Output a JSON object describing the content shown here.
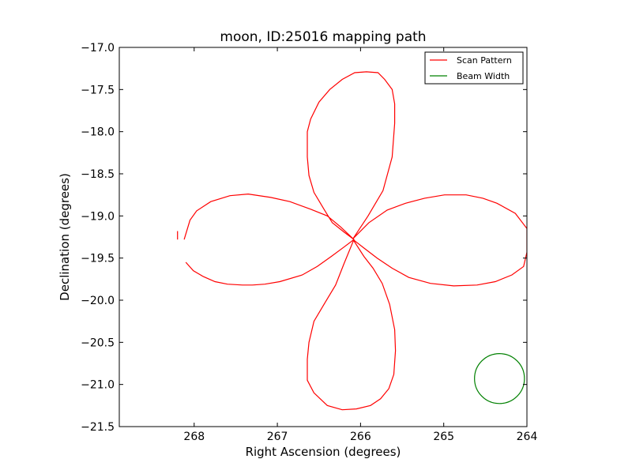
{
  "chart_data": {
    "type": "line",
    "title": "moon, ID:25016 mapping path",
    "xlabel": "Right Ascension (degrees)",
    "ylabel": "Declination (degrees)",
    "xlim": [
      268.9,
      264.0
    ],
    "ylim": [
      -21.5,
      -17.0
    ],
    "x_ticks": [
      268,
      267,
      266,
      265,
      264
    ],
    "x_tick_labels": [
      "268",
      "267",
      "266",
      "265",
      "264"
    ],
    "y_ticks": [
      -17.0,
      -17.5,
      -18.0,
      -18.5,
      -19.0,
      -19.5,
      -20.0,
      -20.5,
      -21.0,
      -21.5
    ],
    "y_tick_labels": [
      "−17.0",
      "−17.5",
      "−18.0",
      "−18.5",
      "−19.0",
      "−19.5",
      "−20.0",
      "−20.5",
      "−21.0",
      "−21.5"
    ],
    "grid": false,
    "legend_position": "top-right",
    "series": [
      {
        "name": "Scan Pattern",
        "color": "#ff0000",
        "x": [
          268.1,
          268.01,
          267.89,
          267.75,
          267.6,
          267.42,
          267.3,
          267.15,
          266.97,
          266.7,
          266.52,
          266.35,
          266.2,
          266.08,
          266.2,
          266.34,
          266.44,
          266.56,
          266.62,
          266.64,
          266.64,
          266.6,
          266.5,
          266.37,
          266.22,
          266.07,
          265.93,
          265.79,
          265.71,
          265.62,
          265.59,
          265.59,
          265.62,
          265.73,
          265.91,
          266.09,
          265.9,
          265.68,
          265.46,
          265.23,
          264.99,
          264.73,
          264.53,
          264.36,
          264.14,
          264.0,
          264.0,
          264.04,
          264.18,
          264.38,
          264.6,
          264.88,
          265.16,
          265.42,
          265.62,
          265.8,
          265.96,
          266.09,
          265.96,
          265.85,
          265.74,
          265.65,
          265.59,
          265.58,
          265.6,
          265.66,
          265.76,
          265.88,
          266.05,
          266.22,
          266.4,
          266.56,
          266.64,
          266.64,
          266.62,
          266.56,
          266.44,
          266.3,
          266.2,
          266.08,
          266.24,
          266.4,
          266.6,
          266.85,
          267.08,
          267.35,
          267.57,
          267.8,
          267.97,
          268.05,
          268.12
        ],
        "y": [
          -19.55,
          -19.65,
          -19.72,
          -19.78,
          -19.81,
          -19.82,
          -19.82,
          -19.81,
          -19.78,
          -19.7,
          -19.6,
          -19.48,
          -19.37,
          -19.28,
          -19.19,
          -19.08,
          -18.92,
          -18.72,
          -18.52,
          -18.3,
          -18.0,
          -17.85,
          -17.65,
          -17.5,
          -17.38,
          -17.3,
          -17.29,
          -17.3,
          -17.38,
          -17.5,
          -17.67,
          -17.9,
          -18.3,
          -18.7,
          -19.0,
          -19.27,
          -19.08,
          -18.93,
          -18.85,
          -18.79,
          -18.75,
          -18.75,
          -18.79,
          -18.85,
          -18.97,
          -19.15,
          -19.43,
          -19.6,
          -19.7,
          -19.78,
          -19.82,
          -19.83,
          -19.8,
          -19.73,
          -19.62,
          -19.5,
          -19.38,
          -19.28,
          -19.48,
          -19.62,
          -19.8,
          -20.05,
          -20.35,
          -20.6,
          -20.88,
          -21.05,
          -21.17,
          -21.25,
          -21.29,
          -21.3,
          -21.25,
          -21.1,
          -20.95,
          -20.7,
          -20.5,
          -20.25,
          -20.05,
          -19.82,
          -19.57,
          -19.28,
          -19.13,
          -19.0,
          -18.92,
          -18.83,
          -18.78,
          -18.74,
          -18.76,
          -18.83,
          -18.94,
          -19.05,
          -19.28
        ]
      },
      {
        "name": "Beam Width",
        "color": "#008000",
        "center": [
          264.33,
          -20.93
        ],
        "radius": 0.3
      }
    ]
  }
}
